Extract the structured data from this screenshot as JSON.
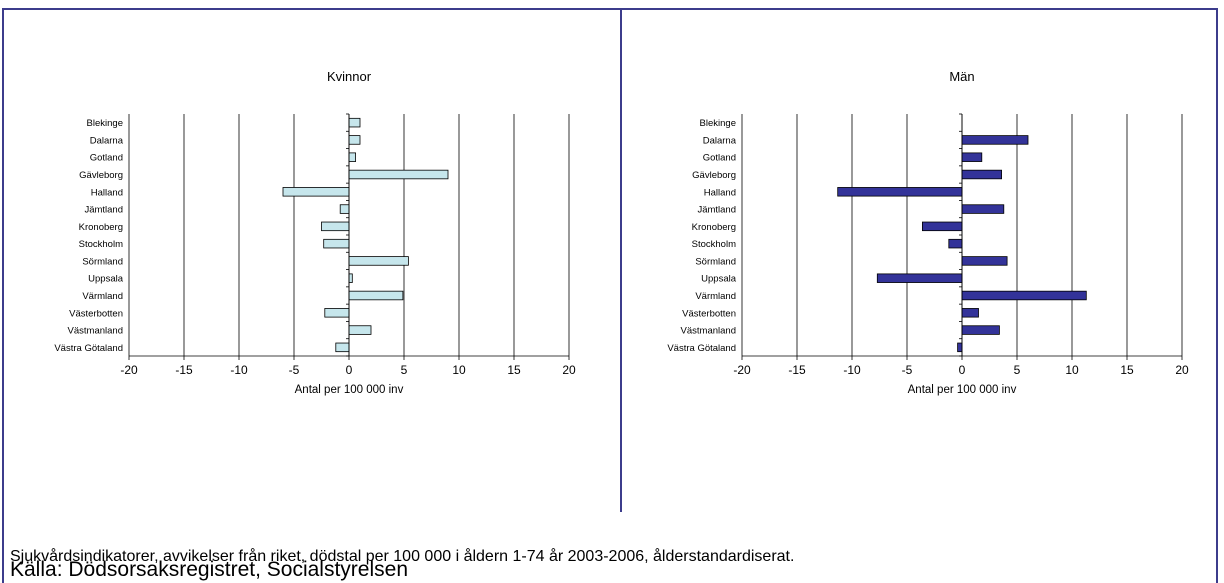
{
  "chart_data": [
    {
      "type": "bar",
      "orientation": "horizontal",
      "title": "Kvinnor",
      "xlabel": "Antal per 100 000 inv",
      "ylabel": "",
      "xlim": [
        -20,
        20
      ],
      "xticks": [
        -20,
        -15,
        -10,
        -5,
        0,
        5,
        10,
        15,
        20
      ],
      "grid": "vertical",
      "bar_color": "#c6e6ec",
      "categories": [
        "Blekinge",
        "Dalarna",
        "Gotland",
        "Gävleborg",
        "Halland",
        "Jämtland",
        "Kronoberg",
        "Stockholm",
        "Sörmland",
        "Uppsala",
        "Värmland",
        "Västerbotten",
        "Västmanland",
        "Västra Götaland"
      ],
      "values": [
        1.0,
        1.0,
        0.6,
        9.0,
        -6.0,
        -0.8,
        -2.5,
        -2.3,
        5.4,
        0.3,
        4.9,
        -2.2,
        2.0,
        -1.2
      ]
    },
    {
      "type": "bar",
      "orientation": "horizontal",
      "title": "Män",
      "xlabel": "Antal per 100 000 inv",
      "ylabel": "",
      "xlim": [
        -20,
        20
      ],
      "xticks": [
        -20,
        -15,
        -10,
        -5,
        0,
        5,
        10,
        15,
        20
      ],
      "grid": "vertical",
      "bar_color": "#333399",
      "categories": [
        "Blekinge",
        "Dalarna",
        "Gotland",
        "Gävleborg",
        "Halland",
        "Jämtland",
        "Kronoberg",
        "Stockholm",
        "Sörmland",
        "Uppsala",
        "Värmland",
        "Västerbotten",
        "Västmanland",
        "Västra Götaland"
      ],
      "values": [
        0,
        6.0,
        1.8,
        3.6,
        -11.3,
        3.8,
        -3.6,
        -1.2,
        4.1,
        -7.7,
        11.3,
        1.5,
        3.4,
        -0.4
      ]
    }
  ],
  "caption": "Sjukvårdsindikatorer, avvikelser från riket, dödstal per 100 000 i åldern 1-74 år 2003-2006, ålderstandardiserat.",
  "source": "Källa: Dödsorsaksregistret, Socialstyrelsen"
}
